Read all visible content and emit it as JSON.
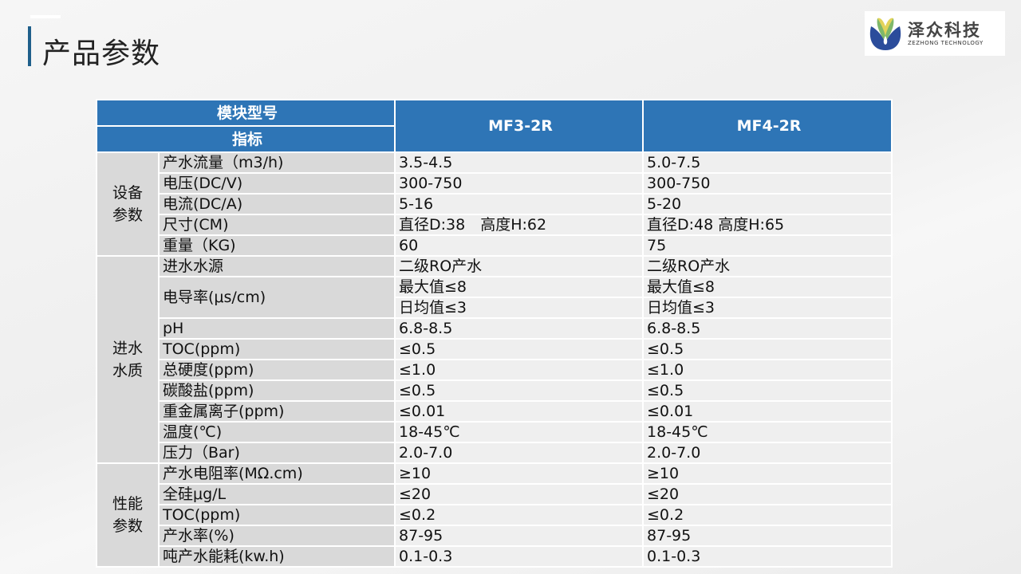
{
  "title": "产品参数",
  "logo": {
    "cn": "泽众科技",
    "en": "ZEZHONG TECHNOLOGY"
  },
  "table": {
    "header": {
      "model_label": "模块型号",
      "index_label": "指标",
      "models": [
        "MF3-2R",
        "MF4-2R"
      ]
    },
    "groups": [
      {
        "name": [
          "设备",
          "参数"
        ],
        "rows": [
          {
            "label": "产水流量（m3/h)",
            "v1": "3.5-4.5",
            "v2": "5.0-7.5"
          },
          {
            "label": "电压(DC/V)",
            "v1": "300-750",
            "v2": "300-750"
          },
          {
            "label": "电流(DC/A)",
            "v1": "5-16",
            "v2": "5-20"
          },
          {
            "label": "尺寸(CM)",
            "v1": "直径D:38　高度H:62",
            "v2": "直径D:48  高度H:65"
          },
          {
            "label": "重量（KG)",
            "v1": "60",
            "v2": "75"
          }
        ]
      },
      {
        "name": [
          "进水",
          "水质"
        ],
        "rows": [
          {
            "label": "进水水源",
            "v1": "二级RO产水",
            "v2": "二级RO产水"
          },
          {
            "label": "电导率(μs/cm)",
            "v1": "最大值≤8",
            "v1b": "日均值≤3",
            "v2": "最大值≤8",
            "v2b": "日均值≤3"
          },
          {
            "label": "pH",
            "v1": "6.8-8.5",
            "v2": "6.8-8.5"
          },
          {
            "label": "TOC(ppm)",
            "v1": "≤0.5",
            "v2": "≤0.5"
          },
          {
            "label": "总硬度(ppm)",
            "v1": "≤1.0",
            "v2": "≤1.0"
          },
          {
            "label": "碳酸盐(ppm)",
            "v1": "≤0.5",
            "v2": "≤0.5"
          },
          {
            "label": "重金属离子(ppm)",
            "v1": "≤0.01",
            "v2": "≤0.01"
          },
          {
            "label": "温度(℃)",
            "v1": "18-45℃",
            "v2": "18-45℃"
          },
          {
            "label": "压力（Bar)",
            "v1": "2.0-7.0",
            "v2": "2.0-7.0"
          }
        ]
      },
      {
        "name": [
          "性能",
          "参数"
        ],
        "rows": [
          {
            "label": "产水电阻率(MΩ.cm)",
            "v1": "≥10",
            "v2": "≥10"
          },
          {
            "label": "全硅μg/L",
            "v1": "≤20",
            "v2": "≤20"
          },
          {
            "label": "TOC(ppm)",
            "v1": "≤0.2",
            "v2": "≤0.2"
          },
          {
            "label": "产水率(%)",
            "v1": "87-95",
            "v2": "87-95"
          },
          {
            "label": "吨产水能耗(kw.h)",
            "v1": "0.1-0.3",
            "v2": "0.1-0.3"
          }
        ]
      }
    ]
  },
  "colors": {
    "header": "#2e75b6",
    "label_cell": "#d9d9d9",
    "value_cell": "#efefef",
    "accent": "#1f5f8b"
  }
}
